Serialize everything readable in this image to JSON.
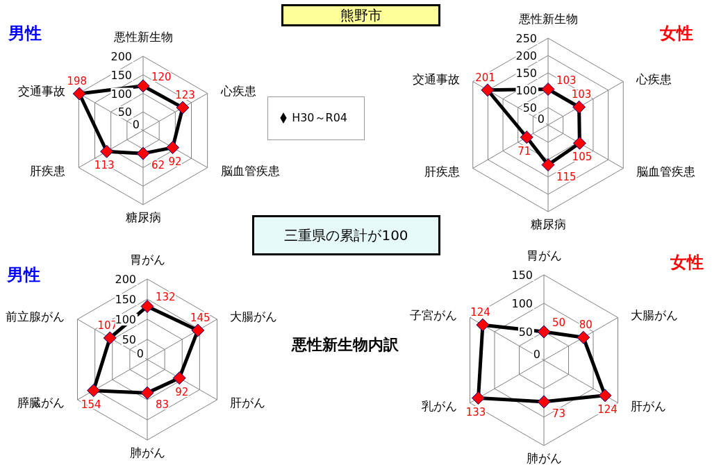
{
  "chart_data": [
    {
      "type": "radar",
      "title": "男性",
      "categories": [
        "悪性新生物",
        "心疾患",
        "脳血管疾患",
        "糖尿病",
        "肝疾患",
        "交通事故"
      ],
      "series": [
        {
          "name": "H30～R04",
          "color": "#000000",
          "values": [
            120,
            123,
            92,
            62,
            113,
            198
          ]
        }
      ],
      "ylim": [
        0,
        200
      ],
      "yticks": [
        0,
        50,
        100,
        150,
        200
      ],
      "grid": true,
      "marker": "diamond",
      "data_labels": true,
      "legend": "right",
      "annotations": [
        "熊野市",
        "三重県の累計が100"
      ]
    },
    {
      "type": "radar",
      "title": "女性",
      "categories": [
        "悪性新生物",
        "心疾患",
        "脳血管疾患",
        "糖尿病",
        "肝疾患",
        "交通事故"
      ],
      "series": [
        {
          "color": "#000000",
          "values": [
            103,
            103,
            105,
            115,
            71,
            201
          ]
        }
      ],
      "ylim": [
        0,
        250
      ],
      "yticks": [
        0,
        50,
        100,
        150,
        200,
        250
      ],
      "grid": true,
      "marker": "diamond",
      "data_labels": true
    },
    {
      "type": "radar",
      "title": "男性",
      "categories": [
        "胃がん",
        "大腸がん",
        "肝がん",
        "肺がん",
        "膵臓がん",
        "前立腺がん"
      ],
      "series": [
        {
          "color": "#000000",
          "values": [
            132,
            145,
            92,
            83,
            154,
            107
          ]
        }
      ],
      "ylim": [
        0,
        200
      ],
      "yticks": [
        0,
        50,
        100,
        150,
        200
      ],
      "grid": true,
      "marker": "diamond",
      "data_labels": true,
      "annotations": [
        "悪性新生物内訳"
      ]
    },
    {
      "type": "radar",
      "title": "女性",
      "categories": [
        "胃がん",
        "大腸がん",
        "肝がん",
        "肺がん",
        "乳がん",
        "子宮がん"
      ],
      "series": [
        {
          "color": "#000000",
          "values": [
            50,
            80,
            124,
            73,
            133,
            124
          ]
        }
      ],
      "ylim": [
        0,
        150
      ],
      "yticks": [
        0,
        50,
        100,
        150
      ],
      "grid": true,
      "marker": "diamond",
      "data_labels": true
    }
  ]
}
